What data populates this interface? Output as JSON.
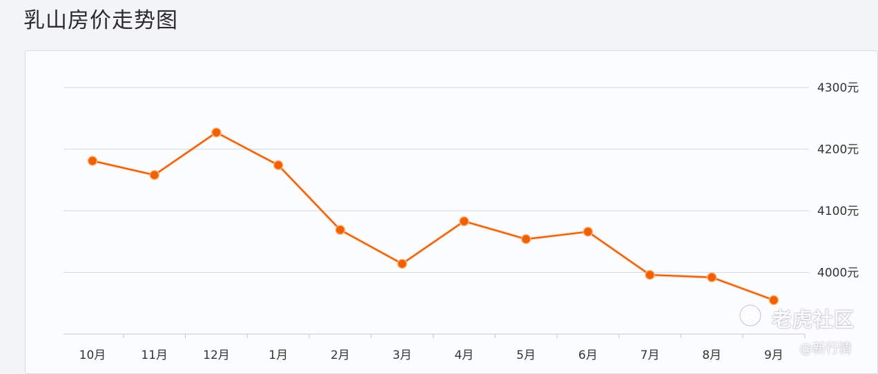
{
  "page": {
    "title": "乳山房价走势图"
  },
  "chart_data": {
    "type": "line",
    "title": "乳山房价走势图",
    "categories": [
      "10月",
      "11月",
      "12月",
      "1月",
      "2月",
      "3月",
      "4月",
      "5月",
      "6月",
      "7月",
      "8月",
      "9月"
    ],
    "series": [
      {
        "values": [
          4181,
          4158,
          4227,
          4174,
          4069,
          4014,
          4083,
          4054,
          4066,
          3996,
          3992,
          3955
        ]
      }
    ],
    "ylim": [
      3900,
      4300
    ],
    "y_ticks": [
      4000,
      4100,
      4200,
      4300
    ],
    "y_tick_labels": [
      "4000元",
      "4100元",
      "4200元",
      "4300元"
    ],
    "y_axis_side": "right",
    "grid": true,
    "line_color": "#e85d04",
    "marker_color": "#f06000"
  },
  "watermark": {
    "main": "老虎社区",
    "sub": "@新行情",
    "logo_icon": "tiger-logo-icon"
  }
}
